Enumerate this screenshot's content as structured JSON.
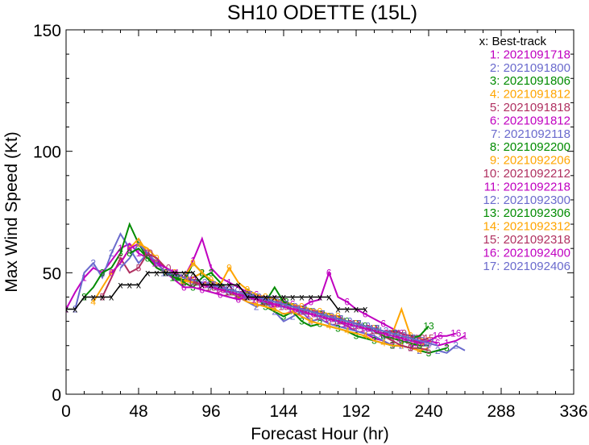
{
  "chart_data": {
    "type": "line",
    "title": "SH10  ODETTE (15L)",
    "xlabel": "Forecast Hour (hr)",
    "ylabel": "Max Wind Speed (Kt)",
    "xlim": [
      0,
      336
    ],
    "ylim": [
      0,
      150
    ],
    "x_ticks": [
      "0",
      "48",
      "96",
      "144",
      "192",
      "240",
      "288",
      "336"
    ],
    "y_ticks": [
      "0",
      "50",
      "100",
      "150"
    ],
    "legend_position": "top-right",
    "best_track": {
      "label": "x: Best-track",
      "color": "#000000",
      "x": [
        0,
        6,
        12,
        18,
        24,
        30,
        36,
        42,
        48,
        54,
        60,
        66,
        72,
        78,
        84,
        90,
        96,
        102,
        108,
        114,
        120,
        126,
        132,
        138,
        144,
        150,
        156,
        162,
        168,
        174,
        180,
        186,
        192,
        198
      ],
      "y": [
        35,
        35,
        40,
        40,
        40,
        40,
        45,
        45,
        45,
        50,
        50,
        50,
        50,
        50,
        50,
        45,
        45,
        45,
        45,
        45,
        40,
        40,
        40,
        40,
        40,
        40,
        40,
        40,
        40,
        40,
        35,
        35,
        35,
        35
      ]
    },
    "series": [
      {
        "name": "1: 2021091718",
        "marker": "1",
        "color": "#c000c0",
        "t0": 0,
        "y": [
          35,
          42,
          48,
          52,
          50,
          55,
          60,
          62,
          58,
          56,
          55,
          52,
          50,
          48,
          55,
          64,
          52,
          48,
          46,
          44,
          42,
          40,
          38,
          36,
          38,
          37,
          34,
          35,
          33,
          32,
          30,
          28,
          26,
          25,
          23,
          22,
          20,
          20,
          19,
          22,
          21,
          20,
          21,
          22,
          24
        ]
      },
      {
        "name": "2: 2021091800",
        "marker": "2",
        "color": "#6a6acd",
        "t0": 6,
        "y": [
          35,
          50,
          54,
          48,
          58,
          66,
          60,
          54,
          58,
          52,
          50,
          48,
          46,
          48,
          50,
          46,
          44,
          42,
          40,
          38,
          36,
          38,
          34,
          30,
          32,
          34,
          30,
          31,
          29,
          28,
          27,
          26,
          25,
          24,
          22,
          20,
          20,
          19,
          18,
          17,
          18,
          17,
          20,
          18
        ]
      },
      {
        "name": "3: 2021091806",
        "marker": "3",
        "color": "#008b00",
        "t0": 12,
        "y": [
          40,
          44,
          50,
          52,
          58,
          70,
          62,
          56,
          54,
          50,
          48,
          46,
          44,
          48,
          50,
          46,
          42,
          40,
          42,
          40,
          36,
          34,
          32,
          34,
          30,
          28,
          29,
          28,
          27,
          26,
          24,
          23,
          22,
          21,
          20,
          20,
          19,
          18,
          17,
          18,
          19
        ]
      },
      {
        "name": "4: 2021091812",
        "marker": "4",
        "color": "#ffa500",
        "t0": 18,
        "y": [
          38,
          44,
          50,
          54,
          60,
          64,
          58,
          52,
          50,
          48,
          46,
          48,
          50,
          46,
          44,
          42,
          40,
          38,
          37,
          36,
          35,
          33,
          34,
          32,
          30,
          29,
          28,
          27,
          26,
          25,
          24,
          22,
          21,
          20,
          20,
          19,
          18,
          19
        ]
      },
      {
        "name": "5: 2021091818",
        "marker": "5",
        "color": "#b03060",
        "t0": 24,
        "y": [
          40,
          48,
          56,
          50,
          52,
          58,
          54,
          50,
          49,
          48,
          47,
          46,
          45,
          44,
          42,
          41,
          40,
          39,
          38,
          38,
          37,
          36,
          35,
          34,
          33,
          32,
          31,
          30,
          29,
          28,
          26,
          24,
          22,
          20,
          19,
          19,
          18
        ]
      },
      {
        "name": "6: 2021091812",
        "marker": "6",
        "color": "#c000c0",
        "t0": 30,
        "y": [
          50,
          54,
          60,
          62,
          58,
          52,
          50,
          47,
          44,
          44,
          43,
          42,
          41,
          40,
          39,
          40,
          41,
          40,
          39,
          38,
          37,
          36,
          38,
          39,
          50,
          40,
          38,
          35,
          33,
          31,
          29,
          27,
          25,
          24,
          23,
          22,
          21
        ]
      },
      {
        "name": "7: 2021092118",
        "marker": "7",
        "color": "#6a6acd",
        "t0": 36,
        "y": [
          52,
          56,
          62,
          58,
          54,
          50,
          48,
          47,
          46,
          45,
          44,
          43,
          42,
          41,
          40,
          39,
          38,
          37,
          36,
          35,
          34,
          33,
          32,
          31,
          30,
          29,
          28,
          27,
          26,
          25,
          24,
          23,
          22,
          21,
          20
        ]
      },
      {
        "name": "8: 2021092200",
        "marker": "8",
        "color": "#008b00",
        "t0": 42,
        "y": [
          58,
          60,
          56,
          52,
          50,
          48,
          46,
          54,
          50,
          46,
          44,
          42,
          41,
          40,
          40,
          39,
          38,
          37,
          36,
          35,
          34,
          33,
          32,
          31,
          30,
          29,
          28,
          26,
          24,
          23,
          22,
          21,
          20,
          20
        ]
      },
      {
        "name": "9: 2021092206",
        "marker": "9",
        "color": "#ffa500",
        "t0": 48,
        "y": [
          62,
          60,
          56,
          52,
          50,
          48,
          54,
          50,
          47,
          45,
          52,
          46,
          43,
          41,
          40,
          39,
          38,
          37,
          36,
          35,
          34,
          33,
          32,
          30,
          29,
          28,
          27,
          26,
          25,
          35,
          24,
          23,
          22
        ]
      },
      {
        "name": "10: 2021092212",
        "marker": "10",
        "color": "#b03060",
        "t0": 54,
        "y": [
          58,
          56,
          52,
          50,
          48,
          46,
          45,
          44,
          43,
          42,
          41,
          40,
          39,
          38,
          37,
          36,
          35,
          34,
          33,
          32,
          31,
          30,
          29,
          28,
          27,
          26,
          25,
          26,
          25,
          24,
          23
        ]
      },
      {
        "name": "11: 2021092218",
        "marker": "11",
        "color": "#c000c0",
        "t0": 60,
        "y": [
          54,
          52,
          50,
          48,
          47,
          46,
          45,
          44,
          43,
          42,
          41,
          40,
          39,
          38,
          37,
          36,
          35,
          34,
          33,
          32,
          31,
          30,
          29,
          28,
          27,
          26,
          25,
          24,
          23,
          22
        ]
      },
      {
        "name": "12: 2021092300",
        "marker": "12",
        "color": "#6a6acd",
        "t0": 66,
        "y": [
          50,
          49,
          48,
          47,
          46,
          45,
          44,
          43,
          42,
          41,
          40,
          39,
          38,
          37,
          36,
          35,
          34,
          33,
          32,
          31,
          30,
          29,
          28,
          27,
          26,
          25,
          24,
          23,
          22
        ]
      },
      {
        "name": "13: 2021092306",
        "marker": "13",
        "color": "#008b00",
        "t0": 72,
        "y": [
          48,
          47,
          46,
          45,
          44,
          43,
          42,
          41,
          40,
          39,
          38,
          44,
          38,
          36,
          35,
          34,
          33,
          32,
          31,
          30,
          29,
          28,
          27,
          26,
          25,
          24,
          23,
          24,
          28
        ]
      },
      {
        "name": "14: 2021092312",
        "marker": "14",
        "color": "#ffa500",
        "t0": 78,
        "y": [
          47,
          46,
          45,
          44,
          43,
          42,
          41,
          40,
          39,
          38,
          37,
          36,
          35,
          34,
          33,
          32,
          31,
          30,
          29,
          28,
          27,
          26,
          25,
          24,
          23,
          22,
          21,
          22
        ]
      },
      {
        "name": "15: 2021092318",
        "marker": "15",
        "color": "#b03060",
        "t0": 84,
        "y": [
          46,
          45,
          44,
          43,
          42,
          41,
          40,
          39,
          38,
          37,
          36,
          35,
          34,
          33,
          32,
          31,
          30,
          29,
          28,
          27,
          26,
          25,
          24,
          23,
          22,
          22,
          23
        ]
      },
      {
        "name": "16: 2021092400",
        "marker": "16",
        "color": "#c000c0",
        "t0": 90,
        "y": [
          45,
          44,
          43,
          42,
          41,
          40,
          39,
          38,
          37,
          36,
          35,
          34,
          33,
          32,
          31,
          30,
          29,
          28,
          27,
          26,
          25,
          24,
          23,
          22,
          21,
          22,
          24,
          24,
          25
        ]
      },
      {
        "name": "17: 2021092406",
        "marker": "17",
        "color": "#6a6acd",
        "t0": 96,
        "y": [
          45,
          44,
          43,
          42,
          41,
          40,
          39,
          38,
          37,
          36,
          35,
          34,
          33,
          32,
          31,
          30,
          29,
          28,
          27,
          26,
          25,
          24,
          23,
          22,
          21,
          20
        ]
      }
    ]
  }
}
